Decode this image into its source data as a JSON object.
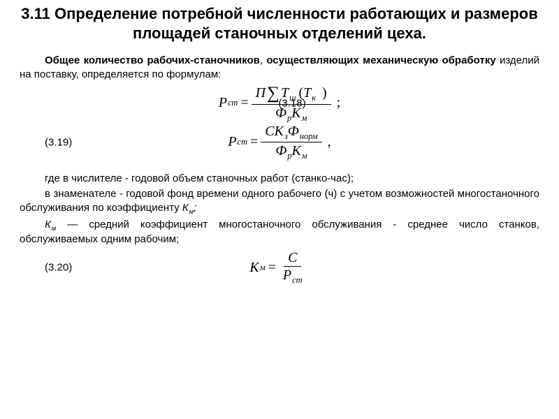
{
  "title": "3.11 Определение потребной численности работающих и размеров площадей станочных отделений цеха.",
  "p1_a": "Общее количество рабочих-станочников",
  "p1_b": ", ",
  "p1_c": "осуществляющих механическую обработку",
  "p1_d": " изделий на поставку, определяется по формулам:",
  "eq318_label": "(3.18)",
  "eq319_label": "(3.19)",
  "eq320_label": "(3.20)",
  "p2": "где в числителе - годовой объем станочных работ (станко-час);",
  "p3_a": "в знаменателе - годовой фонд времени одного рабочего (ч) с учетом возможностей многостаночного обслуживания по коэффициенту ",
  "p3_b": "К",
  "p3_c": "м",
  "p3_d": ";",
  "p4_a": "К",
  "p4_b": "м",
  "p4_c": " — средний коэффициент многостаночного обслуживания - среднее число станков, обслуживаемых одним рабочим;",
  "sym": {
    "P": "Р",
    "st": "ст",
    "Pi": "П",
    "Sigma": "∑",
    "T": "Т",
    "sh": "ш",
    "k": "к",
    "Phi": "Ф",
    "p": "р",
    "K": "К",
    "m": "м",
    "C": "С",
    "z": "з",
    "norm": "норм"
  }
}
